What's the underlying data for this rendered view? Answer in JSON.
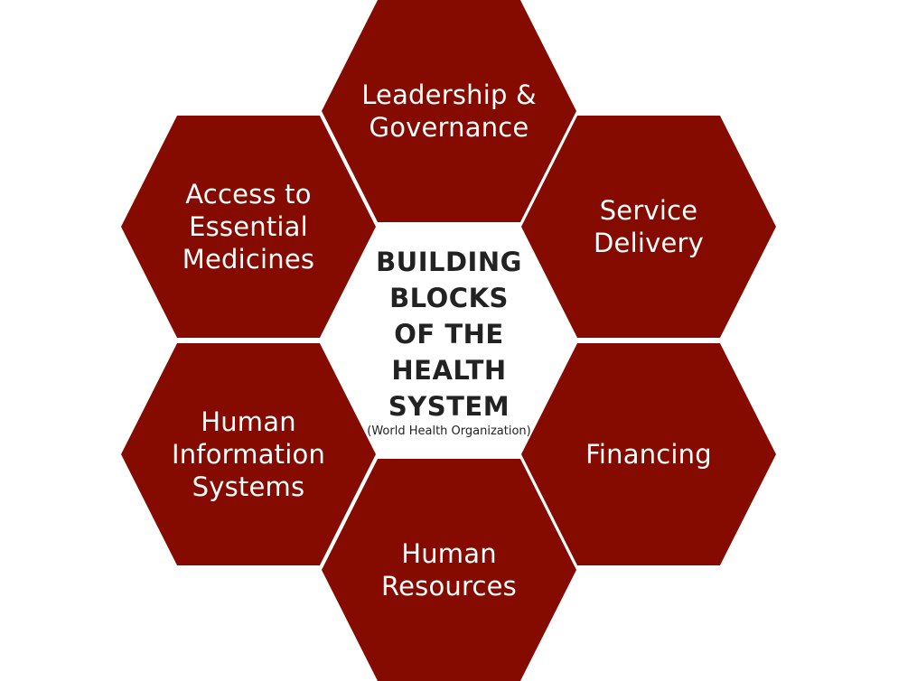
{
  "colors": {
    "hex_fill": "#850a00",
    "hex_text": "#ffffff",
    "center_text": "#222222",
    "background": "#ffffff"
  },
  "center": {
    "title": "BUILDING\nBLOCKS\nOF THE\nHEALTH\nSYSTEM",
    "subtitle": "(World Health Organization)"
  },
  "blocks": {
    "top": "Leadership &\nGovernance",
    "upper_left": "Access to\nEssential\nMedicines",
    "upper_right": "Service\nDelivery",
    "lower_left": "Human\nInformation\nSystems",
    "lower_right": "Financing",
    "bottom": "Human\nResources"
  }
}
